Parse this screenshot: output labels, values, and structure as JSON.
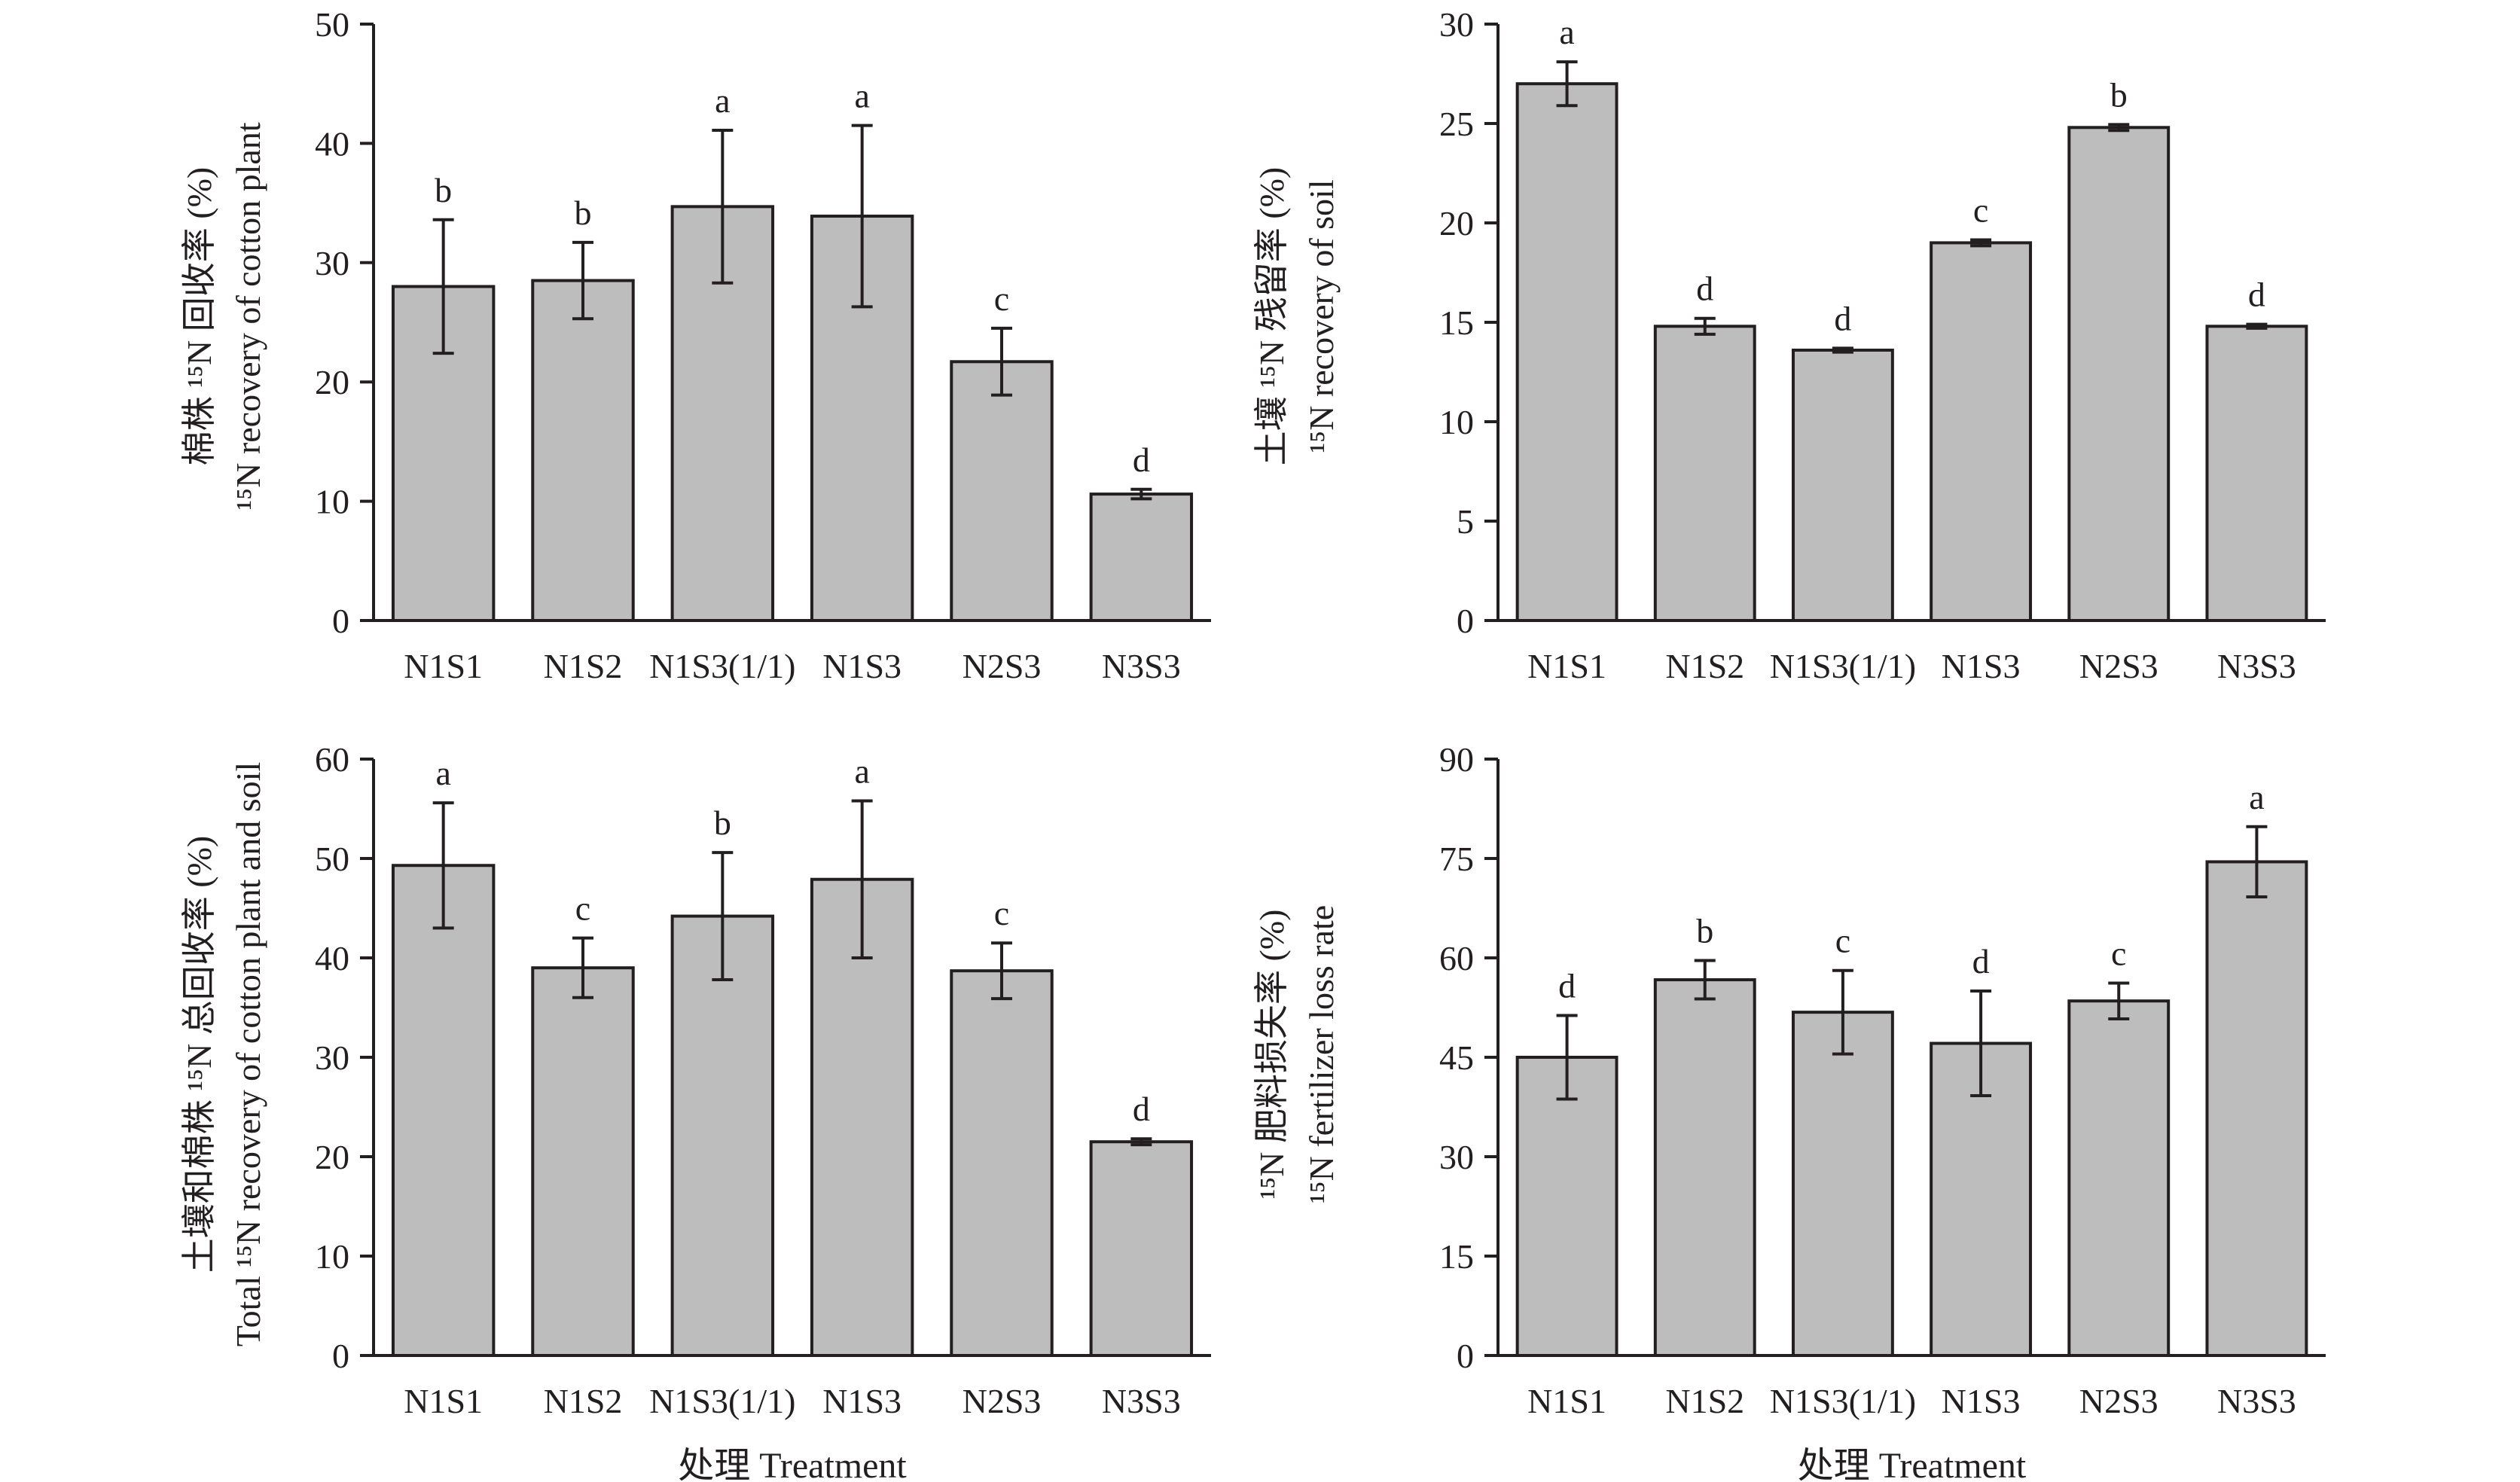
{
  "chart_data": [
    {
      "id": "cotton",
      "type": "bar",
      "categories": [
        "N1S1",
        "N1S2",
        "N1S3(1/1)",
        "N1S3",
        "N2S3",
        "N3S3"
      ],
      "values": [
        28.0,
        28.5,
        34.7,
        33.9,
        21.7,
        10.6
      ],
      "errors": [
        5.6,
        3.2,
        6.4,
        7.6,
        2.8,
        0.4
      ],
      "significance": [
        "b",
        "b",
        "a",
        "a",
        "c",
        "d"
      ],
      "ylim": [
        0,
        50
      ],
      "yticks": [
        0,
        10,
        20,
        30,
        40,
        50
      ],
      "ylabel_line1": "棉株 ¹⁵N 回收率 (%)",
      "ylabel_line2": "¹⁵N recovery of cotton plant",
      "xlabel": ""
    },
    {
      "id": "soil",
      "type": "bar",
      "categories": [
        "N1S1",
        "N1S2",
        "N1S3(1/1)",
        "N1S3",
        "N2S3",
        "N3S3"
      ],
      "values": [
        27.0,
        14.8,
        13.6,
        19.0,
        24.8,
        14.8
      ],
      "errors": [
        1.1,
        0.4,
        0.1,
        0.15,
        0.15,
        0.1
      ],
      "significance": [
        "a",
        "d",
        "d",
        "c",
        "b",
        "d"
      ],
      "ylim": [
        0,
        30
      ],
      "yticks": [
        0,
        5,
        10,
        15,
        20,
        25,
        30
      ],
      "ylabel_line1": "土壤 ¹⁵N 残留率 (%)",
      "ylabel_line2": "¹⁵N recovery of soil",
      "xlabel": ""
    },
    {
      "id": "total",
      "type": "bar",
      "categories": [
        "N1S1",
        "N1S2",
        "N1S3(1/1)",
        "N1S3",
        "N2S3",
        "N3S3"
      ],
      "values": [
        49.3,
        39.0,
        44.2,
        47.9,
        38.7,
        21.5
      ],
      "errors": [
        6.3,
        3.0,
        6.4,
        7.9,
        2.8,
        0.3
      ],
      "significance": [
        "a",
        "c",
        "b",
        "a",
        "c",
        "d"
      ],
      "ylim": [
        0,
        60
      ],
      "yticks": [
        0,
        10,
        20,
        30,
        40,
        50,
        60
      ],
      "ylabel_line1": "土壤和棉株 ¹⁵N 总回收率 (%)",
      "ylabel_line2": "Total ¹⁵N recovery of cotton plant and soil",
      "xlabel": "处理 Treatment"
    },
    {
      "id": "loss",
      "type": "bar",
      "categories": [
        "N1S1",
        "N1S2",
        "N1S3(1/1)",
        "N1S3",
        "N2S3",
        "N3S3"
      ],
      "values": [
        45.0,
        56.7,
        51.8,
        47.1,
        53.5,
        74.5
      ],
      "errors": [
        6.3,
        2.9,
        6.3,
        7.9,
        2.7,
        5.3
      ],
      "significance": [
        "d",
        "b",
        "c",
        "d",
        "c",
        "a"
      ],
      "ylim": [
        0,
        90
      ],
      "yticks": [
        0,
        15,
        30,
        45,
        60,
        75,
        90
      ],
      "ylabel_line1": "¹⁵N 肥料损失率 (%)",
      "ylabel_line2": "¹⁵N fertilizer loss rate",
      "xlabel": "处理 Treatment"
    }
  ]
}
